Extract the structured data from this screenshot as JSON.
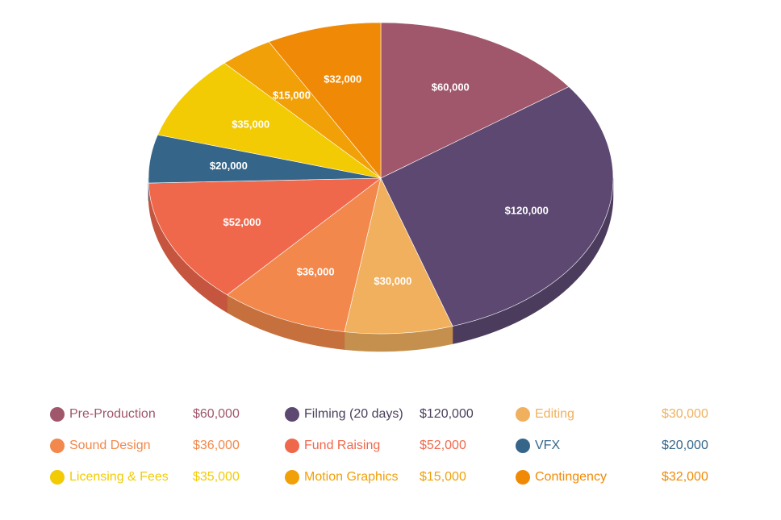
{
  "chart_data": {
    "type": "pie",
    "style": "3d",
    "title": "",
    "legend_position": "bottom",
    "slices": [
      {
        "name": "Pre-Production",
        "value": 60000,
        "label": "$60,000",
        "color": "#a0566b"
      },
      {
        "name": "Filming (20 days)",
        "value": 120000,
        "label": "$120,000",
        "color": "#5c4871"
      },
      {
        "name": "Editing",
        "value": 30000,
        "label": "$30,000",
        "color": "#f0b05e"
      },
      {
        "name": "Sound Design",
        "value": 36000,
        "label": "$36,000",
        "color": "#f2884b"
      },
      {
        "name": "Fund Raising",
        "value": 52000,
        "label": "$52,000",
        "color": "#f0684c"
      },
      {
        "name": "VFX",
        "value": 20000,
        "label": "$20,000",
        "color": "#35668a"
      },
      {
        "name": "Licensing & Fees",
        "value": 35000,
        "label": "$35,000",
        "color": "#f2cb04"
      },
      {
        "name": "Motion Graphics",
        "value": 15000,
        "label": "$15,000",
        "color": "#f1a007"
      },
      {
        "name": "Contingency",
        "value": 32000,
        "label": "$32,000",
        "color": "#f08a06"
      }
    ]
  }
}
